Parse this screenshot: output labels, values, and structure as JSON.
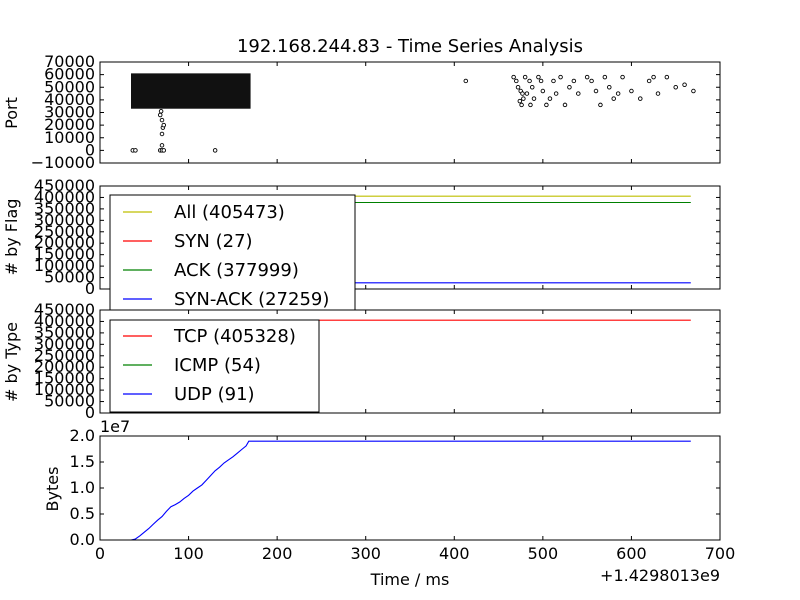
{
  "figure": {
    "title": "192.168.244.83 - Time Series Analysis",
    "xlabel": "Time / ms",
    "x_offset_label": "+1.4298013e9",
    "x_ticks": [
      "0",
      "100",
      "200",
      "300",
      "400",
      "500",
      "600",
      "700"
    ],
    "xlim": [
      0,
      700
    ]
  },
  "chart_data": [
    {
      "type": "scatter",
      "ylabel": "Port",
      "ylim": [
        -10000,
        70000
      ],
      "y_ticks": [
        "−10000",
        "0",
        "10000",
        "20000",
        "30000",
        "40000",
        "50000",
        "60000",
        "70000"
      ],
      "dense_band": {
        "x_range": [
          35,
          170
        ],
        "y_range": [
          33000,
          61000
        ]
      },
      "points": [
        [
          37,
          0
        ],
        [
          40,
          0
        ],
        [
          68,
          0
        ],
        [
          70,
          0
        ],
        [
          72,
          0
        ],
        [
          130,
          0
        ],
        [
          70,
          4000
        ],
        [
          70,
          13000
        ],
        [
          71,
          18000
        ],
        [
          72,
          20000
        ],
        [
          70,
          24000
        ],
        [
          68,
          28000
        ],
        [
          69,
          31000
        ],
        [
          413,
          55000
        ],
        [
          467,
          58000
        ],
        [
          470,
          55000
        ],
        [
          472,
          50000
        ],
        [
          475,
          47000
        ],
        [
          477,
          45000
        ],
        [
          478,
          41000
        ],
        [
          474,
          39000
        ],
        [
          476,
          36000
        ],
        [
          480,
          58000
        ],
        [
          485,
          55000
        ],
        [
          488,
          50000
        ],
        [
          482,
          45000
        ],
        [
          486,
          36000
        ],
        [
          490,
          41000
        ],
        [
          495,
          58000
        ],
        [
          498,
          55000
        ],
        [
          500,
          47000
        ],
        [
          504,
          36000
        ],
        [
          508,
          41000
        ],
        [
          512,
          55000
        ],
        [
          515,
          45000
        ],
        [
          520,
          58000
        ],
        [
          525,
          36000
        ],
        [
          530,
          50000
        ],
        [
          535,
          55000
        ],
        [
          540,
          45000
        ],
        [
          550,
          58000
        ],
        [
          555,
          55000
        ],
        [
          560,
          47000
        ],
        [
          565,
          36000
        ],
        [
          570,
          58000
        ],
        [
          575,
          50000
        ],
        [
          580,
          41000
        ],
        [
          585,
          45000
        ],
        [
          590,
          58000
        ],
        [
          600,
          47000
        ],
        [
          610,
          41000
        ],
        [
          620,
          55000
        ],
        [
          625,
          58000
        ],
        [
          630,
          45000
        ],
        [
          640,
          58000
        ],
        [
          650,
          50000
        ],
        [
          660,
          52000
        ],
        [
          670,
          47000
        ]
      ]
    },
    {
      "type": "line",
      "ylabel": "# by Flag",
      "ylim": [
        0,
        450000
      ],
      "y_ticks": [
        "0",
        "50000",
        "100000",
        "150000",
        "200000",
        "250000",
        "300000",
        "350000",
        "400000",
        "450000"
      ],
      "legend": "top-left",
      "series": [
        {
          "name": "All (405473)",
          "color": "#bfbf00",
          "x": [
            35,
            70,
            170,
            667
          ],
          "y": [
            0,
            200000,
            405473,
            405473
          ]
        },
        {
          "name": "SYN (27)",
          "color": "#ff0000",
          "x": [
            35,
            667
          ],
          "y": [
            0,
            27
          ]
        },
        {
          "name": "ACK (377999)",
          "color": "#008000",
          "x": [
            35,
            70,
            170,
            667
          ],
          "y": [
            0,
            185000,
            377999,
            377999
          ]
        },
        {
          "name": "SYN-ACK (27259)",
          "color": "#0000ff",
          "x": [
            35,
            70,
            170,
            667
          ],
          "y": [
            0,
            14000,
            27259,
            27259
          ]
        }
      ]
    },
    {
      "type": "line",
      "ylabel": "# by Type",
      "ylim": [
        0,
        450000
      ],
      "y_ticks": [
        "0",
        "50000",
        "100000",
        "150000",
        "200000",
        "250000",
        "300000",
        "350000",
        "400000",
        "450000"
      ],
      "legend": "top-left",
      "series": [
        {
          "name": "TCP (405328)",
          "color": "#ff0000",
          "x": [
            35,
            70,
            170,
            667
          ],
          "y": [
            0,
            200000,
            405328,
            405328
          ]
        },
        {
          "name": "ICMP (54)",
          "color": "#008000",
          "x": [
            35,
            667
          ],
          "y": [
            0,
            54
          ]
        },
        {
          "name": "UDP (91)",
          "color": "#0000ff",
          "x": [
            35,
            130
          ],
          "y": [
            0,
            91
          ]
        }
      ]
    },
    {
      "type": "line",
      "ylabel": "Bytes",
      "y_scale_label": "1e7",
      "ylim": [
        0,
        2.0
      ],
      "y_ticks": [
        "0.0",
        "0.5",
        "1.0",
        "1.5",
        "2.0"
      ],
      "series": [
        {
          "color": "#0000ff",
          "x": [
            35,
            40,
            45,
            50,
            55,
            60,
            65,
            70,
            75,
            80,
            85,
            90,
            95,
            100,
            105,
            110,
            115,
            120,
            125,
            130,
            135,
            140,
            145,
            150,
            155,
            160,
            165,
            168,
            667
          ],
          "y": [
            0.0,
            0.02,
            0.08,
            0.15,
            0.22,
            0.3,
            0.38,
            0.45,
            0.55,
            0.64,
            0.68,
            0.73,
            0.8,
            0.86,
            0.94,
            1.0,
            1.06,
            1.15,
            1.24,
            1.33,
            1.4,
            1.48,
            1.54,
            1.6,
            1.67,
            1.74,
            1.81,
            1.9,
            1.9
          ]
        }
      ]
    }
  ]
}
